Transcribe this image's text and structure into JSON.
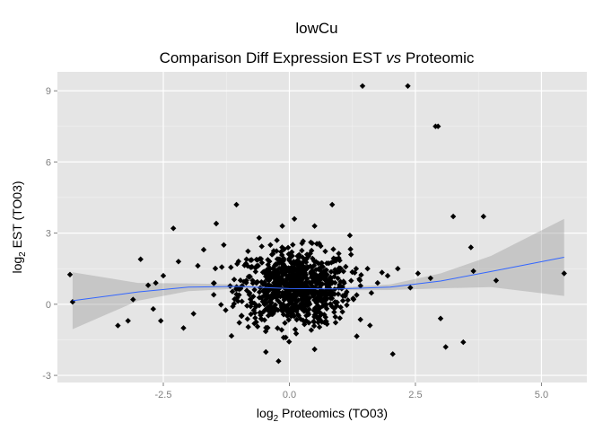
{
  "chart_data": {
    "type": "scatter",
    "title": "lowCu",
    "subtitle": {
      "before": "Comparison Diff Expression EST ",
      "italic": "vs",
      "after": " Proteomic"
    },
    "xlabel": {
      "prefix": "log",
      "sub": "2",
      "rest": " Proteomics (TO03)"
    },
    "ylabel": {
      "prefix": "log",
      "sub": "2",
      "rest": " EST (TO03)"
    },
    "xlim": [
      -4.6,
      5.9
    ],
    "ylim": [
      -3.3,
      9.8
    ],
    "x_ticks": [
      -2.5,
      0.0,
      2.5,
      5.0
    ],
    "x_tick_labels": [
      "-2.5",
      "0.0",
      "2.5",
      "5.0"
    ],
    "y_ticks": [
      -3,
      0,
      3,
      6,
      9
    ],
    "y_tick_labels": [
      "-3",
      "0",
      "3",
      "6",
      "9"
    ],
    "grid": true,
    "panel_background": "#e5e5e5",
    "grid_color": "#ffffff",
    "point_color": "#000000",
    "smooth_color": "#3366ff",
    "ribbon_color": "#999999",
    "smooth_curve": {
      "x": [
        -4.3,
        -3.0,
        -2.0,
        -1.0,
        0.0,
        1.0,
        2.0,
        3.0,
        4.0,
        5.45
      ],
      "y": [
        0.15,
        0.52,
        0.72,
        0.75,
        0.66,
        0.65,
        0.72,
        0.98,
        1.38,
        1.98
      ],
      "lower": [
        -1.05,
        0.15,
        0.55,
        0.66,
        0.6,
        0.59,
        0.6,
        0.67,
        0.72,
        0.35
      ],
      "upper": [
        1.35,
        0.9,
        0.88,
        0.84,
        0.72,
        0.71,
        0.84,
        1.3,
        2.04,
        3.6
      ]
    },
    "outliers": {
      "x": [
        -4.35,
        -4.3,
        -3.4,
        -3.2,
        -3.1,
        -2.95,
        -2.8,
        -2.7,
        -2.65,
        -2.55,
        -2.5,
        -2.3,
        -2.2,
        -2.1,
        -1.45,
        -1.3,
        -1.05,
        -0.85,
        -0.6,
        0.1,
        0.35,
        0.5,
        0.85,
        1.45,
        1.55,
        2.35,
        2.55,
        2.9,
        2.95,
        3.0,
        3.1,
        3.25,
        3.45,
        3.6,
        3.65,
        3.85,
        4.1,
        5.45,
        2.8,
        2.4,
        1.95,
        -1.9,
        -1.7,
        -1.5,
        -0.95,
        0.5,
        1.2,
        1.75,
        2.05,
        2.15
      ],
      "y": [
        1.25,
        0.1,
        -0.9,
        -0.7,
        0.2,
        1.9,
        0.8,
        -0.2,
        0.9,
        -0.7,
        1.2,
        3.2,
        1.8,
        -1.0,
        3.4,
        2.5,
        4.2,
        1.9,
        2.8,
        3.6,
        2.1,
        3.3,
        4.2,
        9.2,
        1.5,
        9.2,
        1.3,
        7.5,
        7.5,
        -0.6,
        -1.8,
        3.7,
        -1.6,
        2.4,
        1.4,
        3.7,
        1.0,
        1.3,
        1.1,
        0.7,
        1.2,
        -0.4,
        2.3,
        0.4,
        -0.5,
        -1.9,
        2.9,
        0.9,
        -2.1,
        1.5
      ]
    },
    "cluster": {
      "center_x": 0.1,
      "center_y": 0.7,
      "sd_x": 0.55,
      "sd_y": 0.8,
      "count": 850
    }
  }
}
